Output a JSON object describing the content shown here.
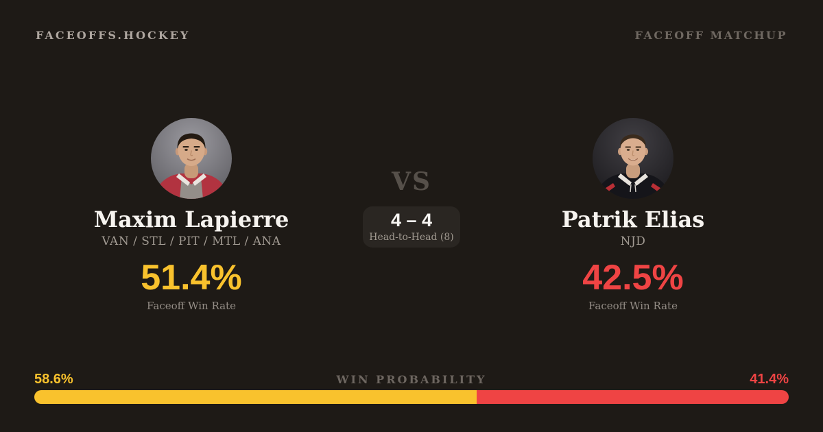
{
  "theme": {
    "background": "#1e1a16",
    "accent_yellow": "#f9c22d",
    "accent_red": "#ef4444",
    "text_primary": "#f6f3ef",
    "text_muted": "#a29b93",
    "text_dim": "#6f6861",
    "panel": "#2a2622"
  },
  "header": {
    "site": "FACEOFFS.HOCKEY",
    "label": "FACEOFF MATCHUP"
  },
  "matchup": {
    "vs": "VS",
    "head_to_head": {
      "score": "4 – 4",
      "label": "Head-to-Head (8)"
    }
  },
  "players": [
    {
      "name": "Maxim Lapierre",
      "teams": "VAN / STL / PIT / MTL / ANA",
      "win_rate": "51.4%",
      "win_rate_label": "Faceoff Win Rate",
      "accent": "#f9c22d",
      "photo": "maxim-lapierre-headshot"
    },
    {
      "name": "Patrik Elias",
      "teams": "NJD",
      "win_rate": "42.5%",
      "win_rate_label": "Faceoff Win Rate",
      "accent": "#ef4444",
      "photo": "patrik-elias-headshot"
    }
  ],
  "win_probability": {
    "label": "WIN PROBABILITY",
    "left_pct": "58.6%",
    "right_pct": "41.4%",
    "left_value": 58.6,
    "right_value": 41.4
  }
}
